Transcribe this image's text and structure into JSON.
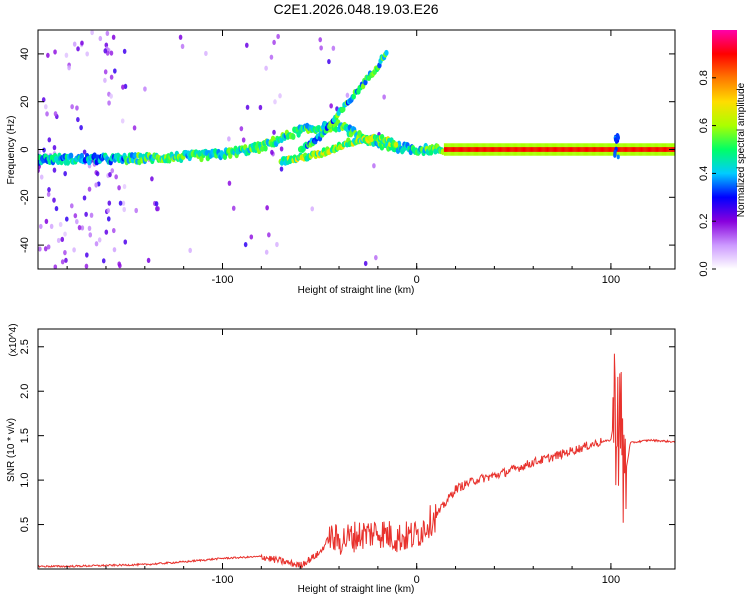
{
  "chart_data": [
    {
      "type": "heatmap",
      "title": "C2E1.2026.048.19.03.E26",
      "xlabel": "Height of straight line (km)",
      "ylabel": "Frequency (Hz)",
      "xlim": [
        -195,
        133
      ],
      "ylim": [
        -50,
        50
      ],
      "xticks": [
        -100,
        0,
        100
      ],
      "xtick_labels": [
        "-100",
        "0",
        "100"
      ],
      "yticks": [
        -40,
        -20,
        0,
        20,
        40
      ],
      "ytick_labels": [
        "-40",
        "-20",
        "0",
        "20",
        "40"
      ],
      "colorbar": {
        "label": "Normalized spectral amplitude",
        "range": [
          0,
          1
        ],
        "ticks": [
          0.0,
          0.2,
          0.4,
          0.6,
          0.8
        ],
        "tick_labels": [
          "0.0",
          "0.2",
          "0.4",
          "0.6",
          "0.8"
        ],
        "colors": [
          "#ffffff",
          "#cc99ff",
          "#8800dd",
          "#0000ff",
          "#00ccff",
          "#00ff66",
          "#aaff00",
          "#ffdd00",
          "#ff7700",
          "#ff0000",
          "#ff00aa"
        ]
      },
      "ridges": [
        {
          "name": "main ridge",
          "points": [
            [
              -195,
              -4
            ],
            [
              -150,
              -4
            ],
            [
              -120,
              -3
            ],
            [
              -100,
              -2
            ],
            [
              -80,
              1
            ],
            [
              -60,
              8
            ],
            [
              -40,
              10
            ],
            [
              -20,
              2
            ],
            [
              0,
              0
            ],
            [
              20,
              0
            ],
            [
              60,
              0
            ],
            [
              100,
              0
            ],
            [
              133,
              0
            ]
          ]
        },
        {
          "name": "upper branch",
          "points": [
            [
              -60,
              0
            ],
            [
              -50,
              5
            ],
            [
              -40,
              15
            ],
            [
              -30,
              25
            ],
            [
              -20,
              35
            ],
            [
              -15,
              42
            ]
          ]
        },
        {
          "name": "lower branch",
          "points": [
            [
              -70,
              -5
            ],
            [
              -50,
              -2
            ],
            [
              -35,
              3
            ],
            [
              -20,
              5
            ],
            [
              -10,
              2
            ]
          ]
        }
      ]
    },
    {
      "type": "line",
      "xlabel": "Height of straight line (km)",
      "ylabel": "SNR (10 * v/v)",
      "y_scale_label": "(x10^4)",
      "xlim": [
        -195,
        133
      ],
      "ylim": [
        0,
        2.7
      ],
      "xticks": [
        -100,
        0,
        100
      ],
      "xtick_labels": [
        "-100",
        "0",
        "100"
      ],
      "yticks": [
        0.5,
        1.0,
        1.5,
        2.0,
        2.5
      ],
      "ytick_labels": [
        "0.5",
        "1.0",
        "1.5",
        "2.0",
        "2.5"
      ],
      "series": [
        {
          "name": "SNR",
          "color": "#e8322d",
          "x": [
            -195,
            -180,
            -160,
            -140,
            -120,
            -100,
            -80,
            -70,
            -60,
            -50,
            -45,
            -40,
            -30,
            -20,
            -10,
            0,
            5,
            10,
            20,
            30,
            40,
            50,
            60,
            70,
            80,
            90,
            95,
            100,
            103,
            105,
            107,
            110,
            120,
            133
          ],
          "y": [
            0.03,
            0.03,
            0.04,
            0.05,
            0.08,
            0.12,
            0.14,
            0.09,
            0.04,
            0.18,
            0.35,
            0.32,
            0.38,
            0.42,
            0.35,
            0.38,
            0.5,
            0.6,
            0.9,
            1.0,
            1.05,
            1.12,
            1.2,
            1.26,
            1.33,
            1.4,
            1.43,
            1.45,
            1.9,
            1.5,
            1.0,
            1.42,
            1.45,
            1.43
          ]
        }
      ]
    }
  ]
}
